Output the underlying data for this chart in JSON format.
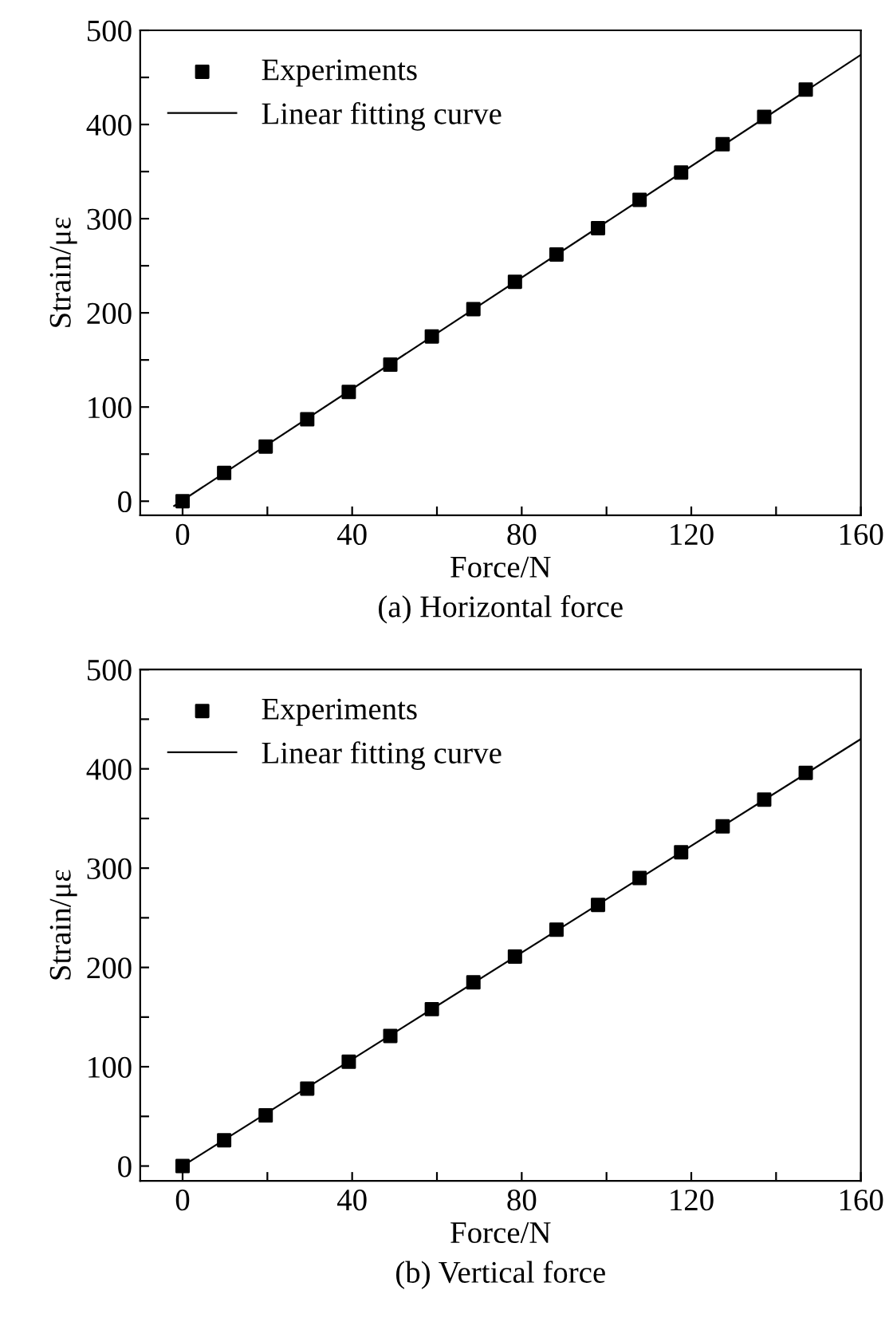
{
  "chart_data": [
    {
      "type": "scatter",
      "xlabel": "Force/N",
      "ylabel": "Strain/με",
      "annotations": [
        "(a) Horizontal force"
      ],
      "xlim": [
        -10,
        160
      ],
      "ylim": [
        -15,
        500
      ],
      "xticks": [
        0,
        {
          "value": 20,
          "label": null
        },
        40,
        {
          "value": 60,
          "label": null
        },
        80,
        {
          "value": 100,
          "label": null
        },
        120,
        {
          "value": 140,
          "label": null
        },
        160
      ],
      "yticks": [
        0,
        {
          "value": 50,
          "label": null
        },
        100,
        {
          "value": 150,
          "label": null
        },
        200,
        {
          "value": 250,
          "label": null
        },
        300,
        {
          "value": 350,
          "label": null
        },
        400,
        {
          "value": 450,
          "label": null
        },
        500
      ],
      "grid": false,
      "legend": "top left",
      "series": [
        {
          "name": "Experiments",
          "marker": "square",
          "color": "#000000",
          "x": [
            0,
            9.8,
            19.6,
            29.4,
            39.2,
            49,
            58.8,
            68.6,
            78.4,
            88.2,
            98,
            107.8,
            117.6,
            127.4,
            137.2,
            147
          ],
          "values": [
            0,
            30,
            58,
            87,
            116,
            145,
            175,
            204,
            233,
            262,
            290,
            320,
            349,
            379,
            408,
            437
          ]
        },
        {
          "name": "Linear fitting curve",
          "type": "line",
          "marker": "none",
          "line_style": "solid",
          "color": "#000000",
          "x": [
            -2,
            160
          ],
          "values": [
            -5,
            474
          ]
        }
      ]
    },
    {
      "type": "scatter",
      "xlabel": "Force/N",
      "ylabel": "Strain/με",
      "annotations": [
        "(b) Vertical force"
      ],
      "xlim": [
        -10,
        160
      ],
      "ylim": [
        -15,
        500
      ],
      "xticks": [
        0,
        {
          "value": 20,
          "label": null
        },
        40,
        {
          "value": 60,
          "label": null
        },
        80,
        {
          "value": 100,
          "label": null
        },
        120,
        {
          "value": 140,
          "label": null
        },
        160
      ],
      "yticks": [
        0,
        {
          "value": 50,
          "label": null
        },
        100,
        {
          "value": 150,
          "label": null
        },
        200,
        {
          "value": 250,
          "label": null
        },
        300,
        {
          "value": 350,
          "label": null
        },
        400,
        {
          "value": 450,
          "label": null
        },
        500
      ],
      "grid": false,
      "legend": "top left",
      "series": [
        {
          "name": "Experiments",
          "marker": "square",
          "color": "#000000",
          "x": [
            0,
            9.8,
            19.6,
            29.4,
            39.2,
            49,
            58.8,
            68.6,
            78.4,
            88.2,
            98,
            107.8,
            117.6,
            127.4,
            137.2,
            147
          ],
          "values": [
            0,
            26,
            51,
            78,
            105,
            131,
            158,
            185,
            211,
            238,
            263,
            290,
            316,
            342,
            369,
            396
          ]
        },
        {
          "name": "Linear fitting curve",
          "type": "line",
          "marker": "none",
          "line_style": "solid",
          "color": "#000000",
          "x": [
            0,
            160
          ],
          "values": [
            0,
            430
          ]
        }
      ]
    }
  ]
}
